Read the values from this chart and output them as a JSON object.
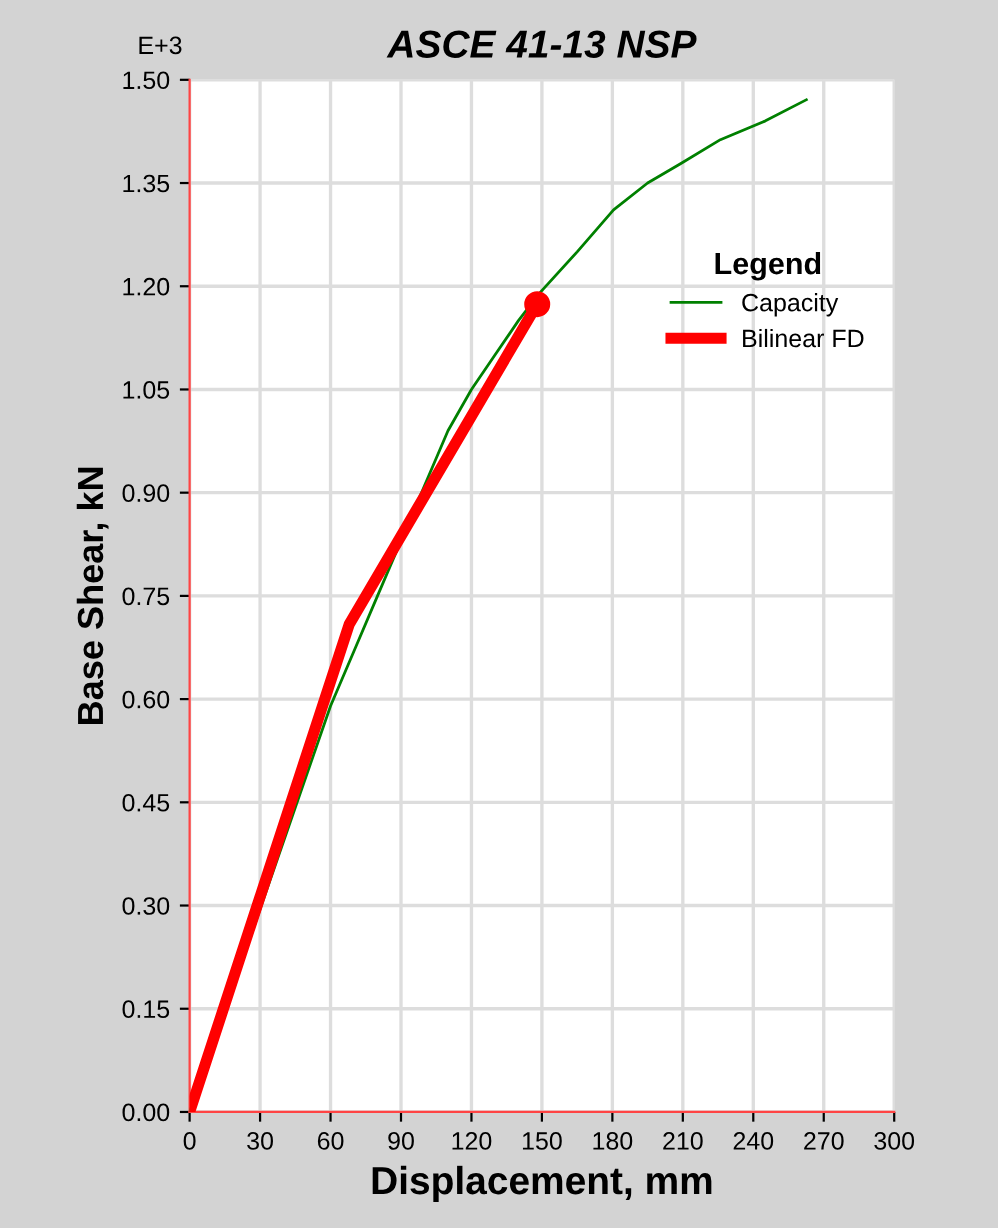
{
  "chart_data": {
    "type": "line",
    "title": "ASCE 41-13 NSP",
    "xlabel": "Displacement, mm",
    "ylabel": "Base Shear, kN",
    "annotations": [
      "E+3"
    ],
    "legend_title": "Legend",
    "legend": "top right",
    "grid": true,
    "series": [
      {
        "name": "Capacity",
        "color": "#008000",
        "x": [
          0,
          60,
          70,
          80,
          100,
          110,
          120,
          130,
          140,
          149,
          165,
          180.5,
          195,
          209,
          226,
          245,
          262.6
        ],
        "values": [
          0,
          0.59,
          0.67,
          0.75,
          0.91,
          0.99,
          1.05,
          1.1,
          1.15,
          1.19,
          1.25,
          1.311,
          1.35,
          1.378,
          1.413,
          1.44,
          1.471
        ]
      },
      {
        "name": "Bilinear FD",
        "color": "#ff0000",
        "x": [
          0,
          68,
          148
        ],
        "values": [
          0,
          0.709,
          1.174
        ]
      },
      {
        "type": "scatter",
        "color": "#ff0000",
        "marker": "circle",
        "x": [
          148
        ],
        "values": [
          1.174
        ]
      }
    ],
    "xlim": [
      0,
      300
    ],
    "xticks": [
      0,
      30,
      60,
      90,
      120,
      150,
      180,
      210,
      240,
      270,
      300
    ],
    "ylim": [
      0,
      1.5
    ],
    "yticks": [
      {
        "value": 0,
        "label": "0.00"
      },
      0.15,
      {
        "value": 0.3,
        "label": "0.30"
      },
      0.45,
      {
        "value": 0.6,
        "label": "0.60"
      },
      0.75,
      {
        "value": 0.9,
        "label": "0.90"
      },
      1.05,
      {
        "value": 1.2,
        "label": "1.20"
      },
      1.35,
      {
        "value": 1.5,
        "label": "1.50"
      }
    ]
  }
}
